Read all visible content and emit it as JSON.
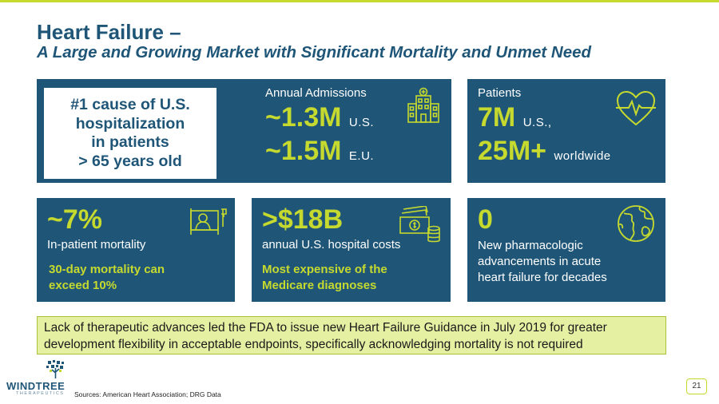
{
  "title": "Heart Failure –",
  "subtitle": "A Large and Growing Market with Significant Mortality and Unmet Need",
  "colors": {
    "navy": "#1f5678",
    "lime": "#c5d92e",
    "note_bg": "#e6f0a3"
  },
  "card_admissions": {
    "headline_lines": [
      "#1 cause of U.S.",
      "hospitalization",
      "in patients",
      "> 65 years old"
    ],
    "label": "Annual Admissions",
    "us_value": "~1.3M",
    "us_unit": "U.S.",
    "eu_value": "~1.5M",
    "eu_unit": "E.U.",
    "icon": "hospital-icon"
  },
  "card_patients": {
    "label": "Patients",
    "us_value": "7M",
    "us_unit": "U.S.,",
    "world_value": "25M+",
    "world_unit": "worldwide",
    "icon": "heart-pulse-icon"
  },
  "card_mortality": {
    "value": "~7%",
    "label": "In-patient mortality",
    "note_lines": [
      "30-day mortality can",
      "exceed 10%"
    ],
    "icon": "patient-bed-icon"
  },
  "card_costs": {
    "value": ">$18B",
    "label": "annual U.S. hospital costs",
    "note_lines": [
      "Most expensive of the",
      "Medicare diagnoses"
    ],
    "icon": "money-icon"
  },
  "card_advancements": {
    "value": "0",
    "label_lines": [
      "New pharmacologic",
      "advancements in acute",
      "heart failure for decades"
    ],
    "icon": "globe-icon"
  },
  "note_lines": [
    "Lack of therapeutic advances led the FDA to issue new Heart Failure Guidance in July 2019 for greater",
    "development flexibility in acceptable endpoints, specifically acknowledging mortality is not required"
  ],
  "logo": {
    "name": "WINDTREE",
    "sub": "THERAPEUTICS"
  },
  "sources": "Sources: American Heart Association; DRG Data",
  "page_number": "21"
}
